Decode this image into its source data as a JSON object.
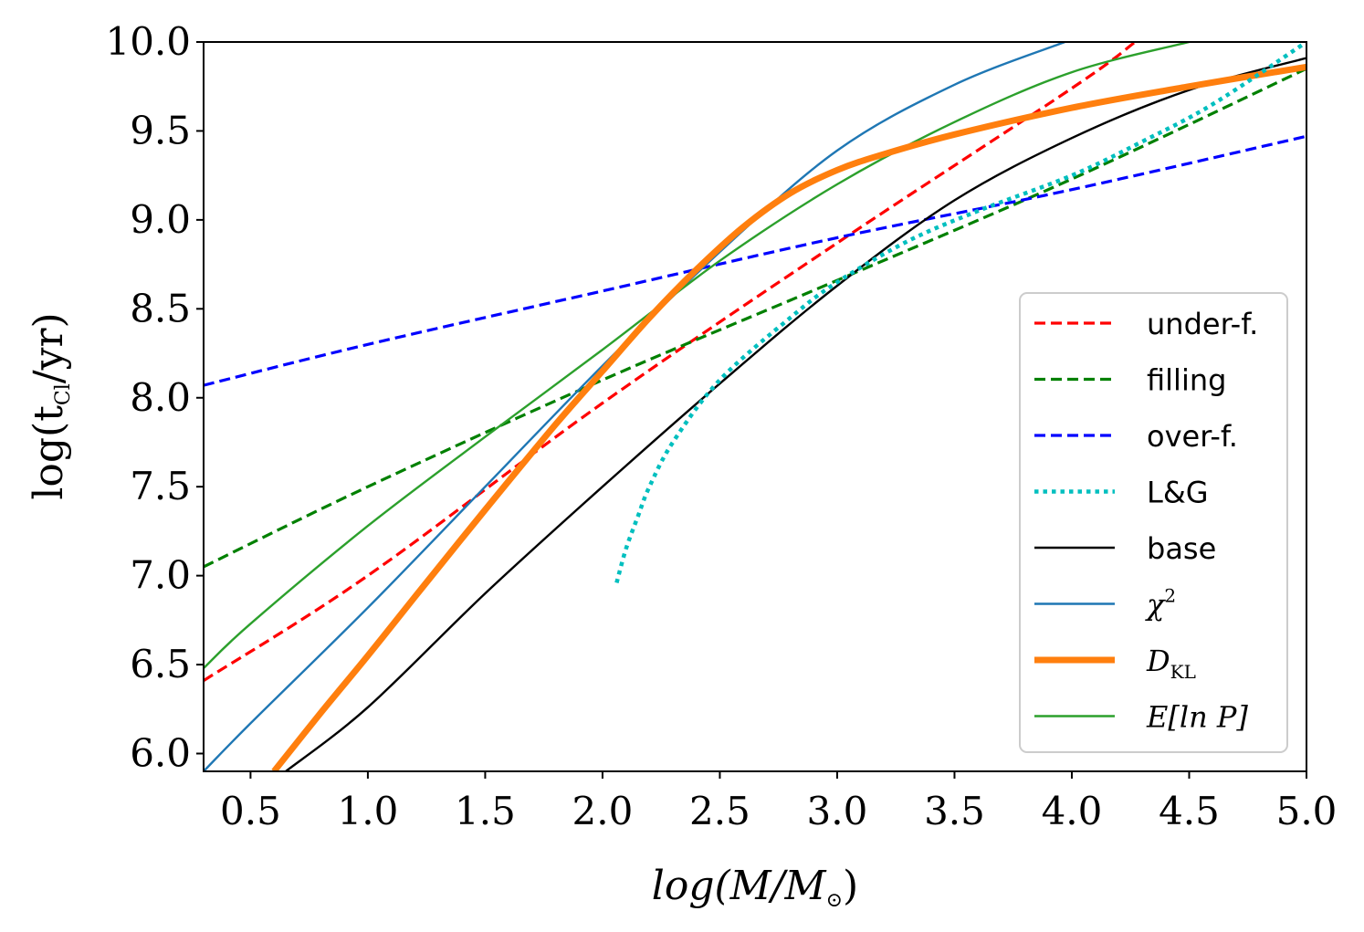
{
  "chart_data": {
    "type": "line",
    "xlabel": "log(M/M⊙)",
    "ylabel": "log(tCl/yr)",
    "xlim": [
      0.3,
      5.0
    ],
    "ylim": [
      5.9,
      10.0
    ],
    "x_ticks": [
      "0.5",
      "1.0",
      "1.5",
      "2.0",
      "2.5",
      "3.0",
      "3.5",
      "4.0",
      "4.5",
      "5.0"
    ],
    "x_tick_values": [
      0.5,
      1.0,
      1.5,
      2.0,
      2.5,
      3.0,
      3.5,
      4.0,
      4.5,
      5.0
    ],
    "y_ticks": [
      "6.0",
      "6.5",
      "7.0",
      "7.5",
      "8.0",
      "8.5",
      "9.0",
      "9.5",
      "10.0"
    ],
    "y_tick_values": [
      6.0,
      6.5,
      7.0,
      7.5,
      8.0,
      8.5,
      9.0,
      9.5,
      10.0
    ],
    "legend_position": "lower-right",
    "series": [
      {
        "name": "under-f.",
        "color": "#ff0000",
        "style": "dashed",
        "width": "normal",
        "x": [
          0.3,
          1.0,
          2.0,
          3.0,
          4.0,
          4.27
        ],
        "y": [
          6.41,
          7.0,
          7.97,
          8.87,
          9.74,
          10.0
        ]
      },
      {
        "name": "filling",
        "color": "#008000",
        "style": "dashed",
        "width": "normal",
        "x": [
          0.3,
          1.0,
          2.0,
          3.0,
          4.0,
          5.0
        ],
        "y": [
          7.05,
          7.5,
          8.1,
          8.66,
          9.23,
          9.85
        ]
      },
      {
        "name": "over-f.",
        "color": "#0000ff",
        "style": "dashed",
        "width": "normal",
        "x": [
          0.3,
          1.0,
          2.0,
          3.0,
          4.0,
          5.0
        ],
        "y": [
          8.07,
          8.3,
          8.6,
          8.9,
          9.17,
          9.47
        ]
      },
      {
        "name": "L&G",
        "color": "#00bfbf",
        "style": "dotted",
        "width": "thick",
        "x": [
          2.06,
          2.1,
          2.15,
          2.2,
          2.3,
          2.5,
          2.8,
          3.0,
          3.3,
          3.6,
          4.0,
          4.3,
          4.6,
          5.0
        ],
        "y": [
          6.96,
          7.15,
          7.33,
          7.5,
          7.75,
          8.1,
          8.45,
          8.65,
          8.88,
          9.05,
          9.25,
          9.44,
          9.65,
          10.0
        ]
      },
      {
        "name": "base",
        "color": "#000000",
        "style": "solid",
        "width": "normal",
        "x": [
          0.65,
          1.0,
          1.5,
          2.0,
          2.5,
          3.0,
          3.5,
          4.0,
          4.5,
          5.0
        ],
        "y": [
          5.9,
          6.26,
          6.9,
          7.5,
          8.08,
          8.63,
          9.11,
          9.46,
          9.73,
          9.91
        ]
      },
      {
        "name": "χ²",
        "color": "#1f77b4",
        "style": "solid",
        "width": "normal",
        "x": [
          0.3,
          0.5,
          1.0,
          1.5,
          2.0,
          2.5,
          3.0,
          3.5,
          3.97
        ],
        "y": [
          5.9,
          6.17,
          6.82,
          7.5,
          8.18,
          8.82,
          9.39,
          9.76,
          10.0
        ]
      },
      {
        "name": "D_KL",
        "color": "#ff7f0e",
        "style": "solid",
        "width": "bold",
        "x": [
          0.6,
          0.8,
          1.0,
          1.2,
          1.5,
          1.8,
          2.0,
          2.2,
          2.4,
          2.6,
          2.8,
          3.0,
          3.2,
          3.5,
          4.0,
          4.5,
          5.0
        ],
        "y": [
          5.9,
          6.23,
          6.55,
          6.88,
          7.37,
          7.85,
          8.15,
          8.45,
          8.72,
          8.96,
          9.15,
          9.28,
          9.37,
          9.48,
          9.63,
          9.75,
          9.86
        ]
      },
      {
        "name": "E[ln P]",
        "color": "#2ca02c",
        "style": "solid",
        "width": "normal",
        "x": [
          0.3,
          0.5,
          1.0,
          1.5,
          2.0,
          2.5,
          3.0,
          3.5,
          4.0,
          4.5
        ],
        "y": [
          6.48,
          6.73,
          7.28,
          7.78,
          8.27,
          8.77,
          9.2,
          9.55,
          9.83,
          10.0
        ]
      }
    ]
  },
  "legend": {
    "items": [
      {
        "label": "under-f."
      },
      {
        "label": "filling"
      },
      {
        "label": "over-f."
      },
      {
        "label": "L&G"
      },
      {
        "label": "base"
      },
      {
        "label": "χ",
        "sup": "2"
      },
      {
        "label": "D",
        "sub": "KL"
      },
      {
        "label": "E[ln P]"
      }
    ]
  },
  "axes": {
    "xlabel_main": "log(M/M",
    "xlabel_sub": "⊙",
    "xlabel_end": ")",
    "ylabel_main": "log(t",
    "ylabel_sub": "Cl",
    "ylabel_end": "/yr)"
  }
}
